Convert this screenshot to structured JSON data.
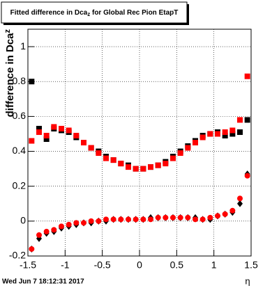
{
  "chart_data": {
    "type": "scatter",
    "title": "Fitted difference in Dca",
    "title_subscript": "z",
    "title_rest": " for Global Rec Pion EtapT",
    "y_label": "difference in Dca",
    "y_label_subscript": "z",
    "x_label": "η",
    "footer": "Wed Jun  7 18:12:31 2017",
    "xlim": [
      -1.5,
      1.5
    ],
    "ylim": [
      -0.2,
      1.1
    ],
    "xticks": [
      -1.5,
      -1,
      -0.5,
      0,
      0.5,
      1,
      1.5
    ],
    "yticks": [
      -0.2,
      0,
      0.2,
      0.4,
      0.6,
      0.8,
      1
    ],
    "grid": true,
    "x": [
      -1.45,
      -1.35,
      -1.25,
      -1.15,
      -1.05,
      -0.95,
      -0.85,
      -0.75,
      -0.65,
      -0.55,
      -0.45,
      -0.35,
      -0.25,
      -0.15,
      -0.05,
      0.05,
      0.15,
      0.25,
      0.35,
      0.45,
      0.55,
      0.65,
      0.75,
      0.85,
      0.95,
      1.05,
      1.15,
      1.25,
      1.35,
      1.45
    ],
    "series": [
      {
        "color": "#000000",
        "marker": "square",
        "values": [
          0.8,
          0.53,
          0.47,
          0.53,
          0.52,
          0.51,
          0.48,
          0.45,
          0.42,
          0.4,
          0.37,
          0.35,
          0.33,
          0.32,
          0.3,
          0.3,
          0.31,
          0.32,
          0.34,
          0.37,
          0.4,
          0.43,
          0.46,
          0.49,
          0.5,
          0.51,
          0.49,
          0.5,
          0.51,
          0.58
        ]
      },
      {
        "color": "#ff0000",
        "marker": "square",
        "values": [
          0.46,
          0.51,
          0.49,
          0.54,
          0.53,
          0.52,
          0.49,
          0.45,
          0.42,
          0.39,
          0.36,
          0.35,
          0.33,
          0.31,
          0.3,
          0.3,
          0.31,
          0.32,
          0.33,
          0.36,
          0.39,
          0.42,
          0.45,
          0.48,
          0.5,
          0.5,
          0.51,
          0.52,
          0.58,
          0.83
        ]
      },
      {
        "color": "#000000",
        "marker": "diamond",
        "values": [
          -0.16,
          -0.1,
          -0.07,
          -0.06,
          -0.04,
          -0.03,
          -0.02,
          -0.01,
          -0.01,
          0.0,
          0.0,
          0.01,
          0.01,
          0.01,
          0.01,
          0.01,
          0.02,
          0.02,
          0.02,
          0.02,
          0.02,
          0.02,
          0.02,
          0.01,
          0.01,
          0.03,
          0.04,
          0.05,
          0.1,
          0.27
        ]
      },
      {
        "color": "#ff0000",
        "marker": "circle",
        "values": [
          -0.16,
          -0.08,
          -0.06,
          -0.05,
          -0.03,
          -0.02,
          -0.01,
          -0.01,
          0.0,
          0.0,
          0.01,
          0.01,
          0.01,
          0.01,
          0.01,
          0.01,
          0.01,
          0.02,
          0.02,
          0.02,
          0.02,
          0.02,
          0.01,
          0.01,
          0.02,
          0.03,
          0.04,
          0.06,
          0.13,
          0.26
        ]
      }
    ]
  }
}
